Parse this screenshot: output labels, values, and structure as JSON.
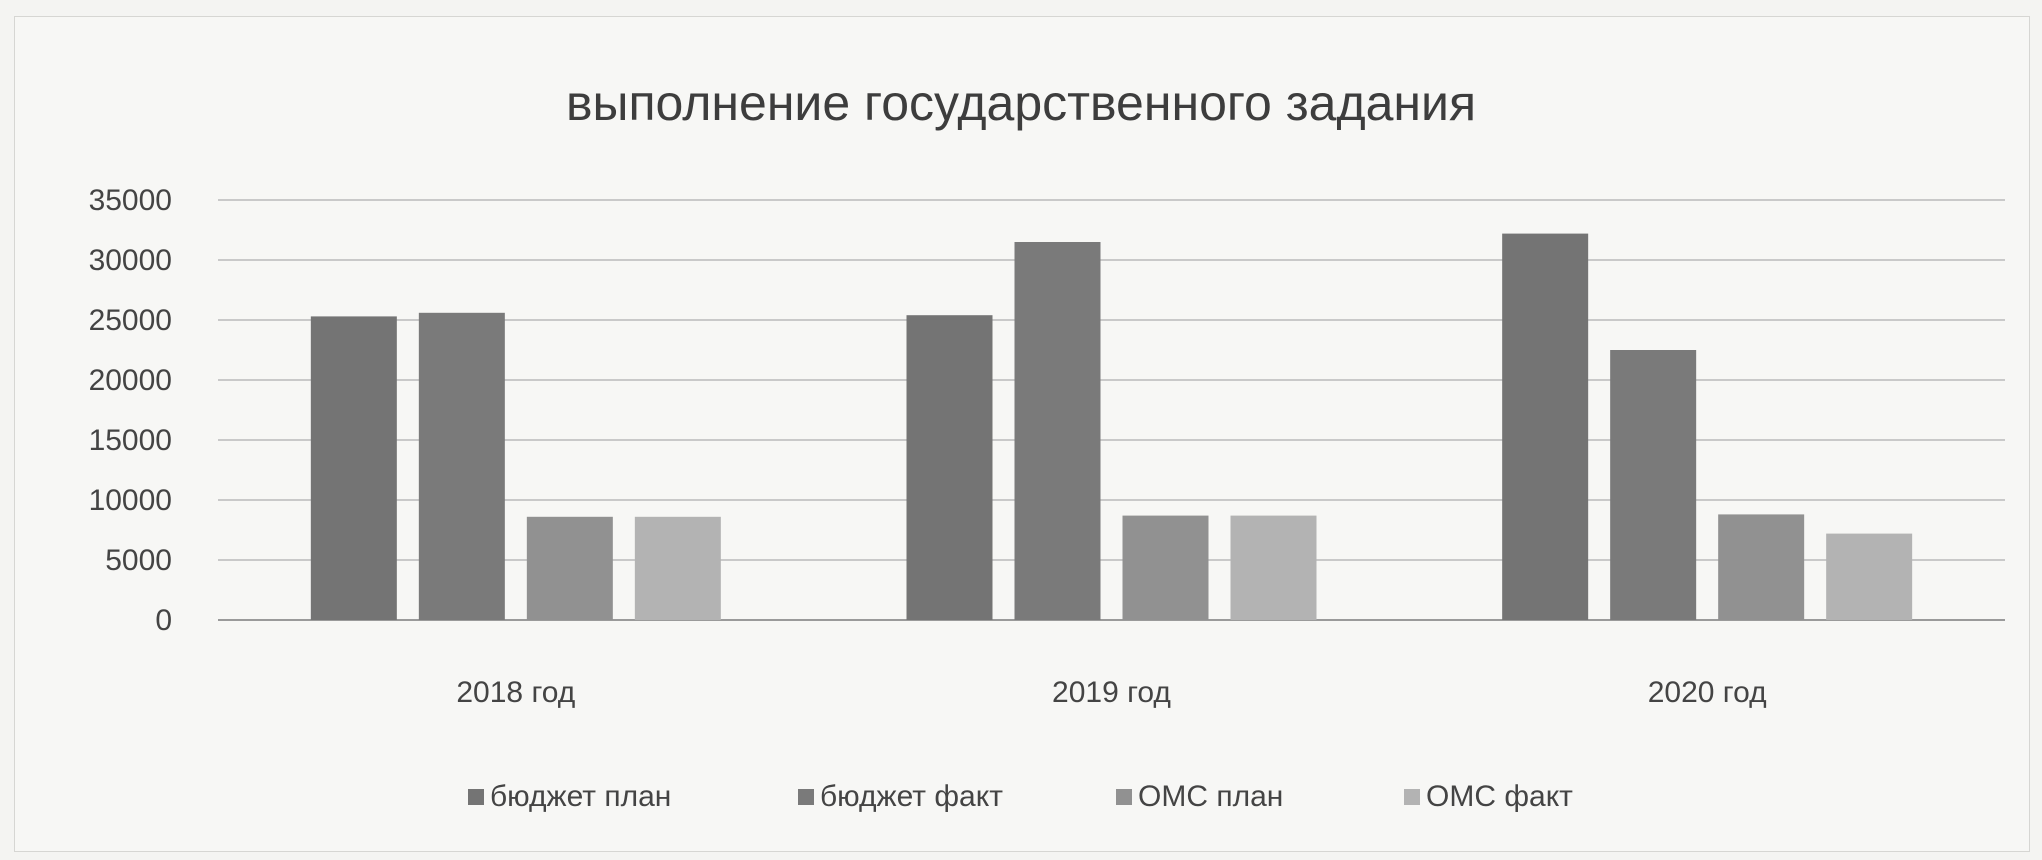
{
  "chart_data": {
    "type": "bar",
    "title": "выполнение государственного задания",
    "xlabel": "",
    "ylabel": "",
    "categories": [
      "2018 год",
      "2019 год",
      "2020 год"
    ],
    "series": [
      {
        "name": "бюджет план",
        "values": [
          25300,
          25400,
          32200
        ],
        "color": "#747474"
      },
      {
        "name": "бюджет факт",
        "values": [
          25600,
          31500,
          22500
        ],
        "color": "#7a7a7a"
      },
      {
        "name": "ОМС план",
        "values": [
          8600,
          8700,
          8800
        ],
        "color": "#919191"
      },
      {
        "name": "ОМС факт",
        "values": [
          8600,
          8700,
          7200
        ],
        "color": "#b3b3b3"
      }
    ],
    "ylim": [
      0,
      35000
    ],
    "yticks": [
      0,
      5000,
      10000,
      15000,
      20000,
      25000,
      30000,
      35000
    ],
    "yticklabels": [
      "0",
      "5000",
      "10000",
      "15000",
      "20000",
      "25000",
      "30000",
      "35000"
    ],
    "grid": true,
    "legend_position": "bottom"
  }
}
